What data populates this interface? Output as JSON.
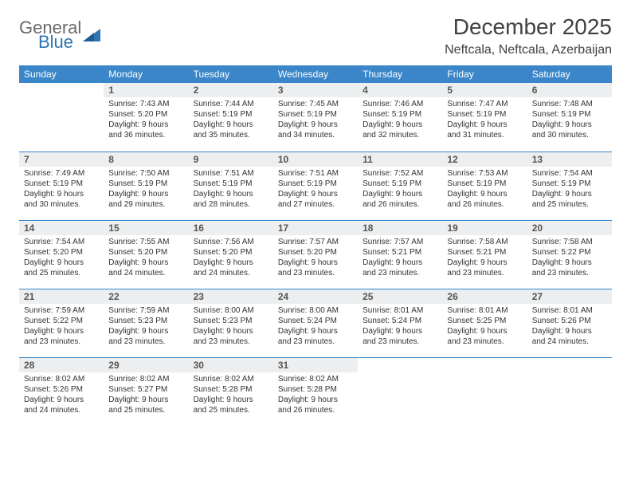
{
  "logo": {
    "general": "General",
    "blue": "Blue"
  },
  "title": "December 2025",
  "location": "Neftcala, Neftcala, Azerbaijan",
  "colors": {
    "header_bg": "#3a86c8",
    "header_text": "#ffffff",
    "daynum_bg": "#eceef0",
    "border": "#3a86c8",
    "text": "#3a3a3a",
    "logo_general": "#6a6a6a",
    "logo_blue": "#2f74b5"
  },
  "weekdays": [
    "Sunday",
    "Monday",
    "Tuesday",
    "Wednesday",
    "Thursday",
    "Friday",
    "Saturday"
  ],
  "weeks": [
    [
      null,
      {
        "n": "1",
        "sr": "Sunrise: 7:43 AM",
        "ss": "Sunset: 5:20 PM",
        "dl": "Daylight: 9 hours and 36 minutes."
      },
      {
        "n": "2",
        "sr": "Sunrise: 7:44 AM",
        "ss": "Sunset: 5:19 PM",
        "dl": "Daylight: 9 hours and 35 minutes."
      },
      {
        "n": "3",
        "sr": "Sunrise: 7:45 AM",
        "ss": "Sunset: 5:19 PM",
        "dl": "Daylight: 9 hours and 34 minutes."
      },
      {
        "n": "4",
        "sr": "Sunrise: 7:46 AM",
        "ss": "Sunset: 5:19 PM",
        "dl": "Daylight: 9 hours and 32 minutes."
      },
      {
        "n": "5",
        "sr": "Sunrise: 7:47 AM",
        "ss": "Sunset: 5:19 PM",
        "dl": "Daylight: 9 hours and 31 minutes."
      },
      {
        "n": "6",
        "sr": "Sunrise: 7:48 AM",
        "ss": "Sunset: 5:19 PM",
        "dl": "Daylight: 9 hours and 30 minutes."
      }
    ],
    [
      {
        "n": "7",
        "sr": "Sunrise: 7:49 AM",
        "ss": "Sunset: 5:19 PM",
        "dl": "Daylight: 9 hours and 30 minutes."
      },
      {
        "n": "8",
        "sr": "Sunrise: 7:50 AM",
        "ss": "Sunset: 5:19 PM",
        "dl": "Daylight: 9 hours and 29 minutes."
      },
      {
        "n": "9",
        "sr": "Sunrise: 7:51 AM",
        "ss": "Sunset: 5:19 PM",
        "dl": "Daylight: 9 hours and 28 minutes."
      },
      {
        "n": "10",
        "sr": "Sunrise: 7:51 AM",
        "ss": "Sunset: 5:19 PM",
        "dl": "Daylight: 9 hours and 27 minutes."
      },
      {
        "n": "11",
        "sr": "Sunrise: 7:52 AM",
        "ss": "Sunset: 5:19 PM",
        "dl": "Daylight: 9 hours and 26 minutes."
      },
      {
        "n": "12",
        "sr": "Sunrise: 7:53 AM",
        "ss": "Sunset: 5:19 PM",
        "dl": "Daylight: 9 hours and 26 minutes."
      },
      {
        "n": "13",
        "sr": "Sunrise: 7:54 AM",
        "ss": "Sunset: 5:19 PM",
        "dl": "Daylight: 9 hours and 25 minutes."
      }
    ],
    [
      {
        "n": "14",
        "sr": "Sunrise: 7:54 AM",
        "ss": "Sunset: 5:20 PM",
        "dl": "Daylight: 9 hours and 25 minutes."
      },
      {
        "n": "15",
        "sr": "Sunrise: 7:55 AM",
        "ss": "Sunset: 5:20 PM",
        "dl": "Daylight: 9 hours and 24 minutes."
      },
      {
        "n": "16",
        "sr": "Sunrise: 7:56 AM",
        "ss": "Sunset: 5:20 PM",
        "dl": "Daylight: 9 hours and 24 minutes."
      },
      {
        "n": "17",
        "sr": "Sunrise: 7:57 AM",
        "ss": "Sunset: 5:20 PM",
        "dl": "Daylight: 9 hours and 23 minutes."
      },
      {
        "n": "18",
        "sr": "Sunrise: 7:57 AM",
        "ss": "Sunset: 5:21 PM",
        "dl": "Daylight: 9 hours and 23 minutes."
      },
      {
        "n": "19",
        "sr": "Sunrise: 7:58 AM",
        "ss": "Sunset: 5:21 PM",
        "dl": "Daylight: 9 hours and 23 minutes."
      },
      {
        "n": "20",
        "sr": "Sunrise: 7:58 AM",
        "ss": "Sunset: 5:22 PM",
        "dl": "Daylight: 9 hours and 23 minutes."
      }
    ],
    [
      {
        "n": "21",
        "sr": "Sunrise: 7:59 AM",
        "ss": "Sunset: 5:22 PM",
        "dl": "Daylight: 9 hours and 23 minutes."
      },
      {
        "n": "22",
        "sr": "Sunrise: 7:59 AM",
        "ss": "Sunset: 5:23 PM",
        "dl": "Daylight: 9 hours and 23 minutes."
      },
      {
        "n": "23",
        "sr": "Sunrise: 8:00 AM",
        "ss": "Sunset: 5:23 PM",
        "dl": "Daylight: 9 hours and 23 minutes."
      },
      {
        "n": "24",
        "sr": "Sunrise: 8:00 AM",
        "ss": "Sunset: 5:24 PM",
        "dl": "Daylight: 9 hours and 23 minutes."
      },
      {
        "n": "25",
        "sr": "Sunrise: 8:01 AM",
        "ss": "Sunset: 5:24 PM",
        "dl": "Daylight: 9 hours and 23 minutes."
      },
      {
        "n": "26",
        "sr": "Sunrise: 8:01 AM",
        "ss": "Sunset: 5:25 PM",
        "dl": "Daylight: 9 hours and 23 minutes."
      },
      {
        "n": "27",
        "sr": "Sunrise: 8:01 AM",
        "ss": "Sunset: 5:26 PM",
        "dl": "Daylight: 9 hours and 24 minutes."
      }
    ],
    [
      {
        "n": "28",
        "sr": "Sunrise: 8:02 AM",
        "ss": "Sunset: 5:26 PM",
        "dl": "Daylight: 9 hours and 24 minutes."
      },
      {
        "n": "29",
        "sr": "Sunrise: 8:02 AM",
        "ss": "Sunset: 5:27 PM",
        "dl": "Daylight: 9 hours and 25 minutes."
      },
      {
        "n": "30",
        "sr": "Sunrise: 8:02 AM",
        "ss": "Sunset: 5:28 PM",
        "dl": "Daylight: 9 hours and 25 minutes."
      },
      {
        "n": "31",
        "sr": "Sunrise: 8:02 AM",
        "ss": "Sunset: 5:28 PM",
        "dl": "Daylight: 9 hours and 26 minutes."
      },
      null,
      null,
      null
    ]
  ]
}
